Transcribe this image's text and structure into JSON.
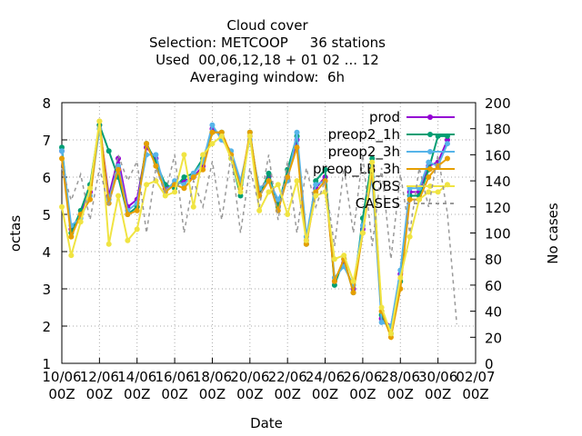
{
  "chart_data": {
    "type": "line",
    "title": "Cloud cover",
    "subtitle": [
      "Selection: METCOOP     36 stations",
      "Used  00,06,12,18 + 01 02 ... 12",
      "Averaging window:  6h"
    ],
    "x_label": "Date",
    "y_label": "octas",
    "y2_label": "No cases",
    "x": [
      "10/06 00Z",
      "10/06 12Z",
      "11/06 00Z",
      "11/06 12Z",
      "12/06 00Z",
      "12/06 12Z",
      "13/06 00Z",
      "13/06 12Z",
      "14/06 00Z",
      "14/06 12Z",
      "15/06 00Z",
      "15/06 12Z",
      "16/06 00Z",
      "16/06 12Z",
      "17/06 00Z",
      "17/06 12Z",
      "18/06 00Z",
      "18/06 12Z",
      "19/06 00Z",
      "19/06 12Z",
      "20/06 00Z",
      "20/06 12Z",
      "21/06 00Z",
      "21/06 12Z",
      "22/06 00Z",
      "22/06 12Z",
      "23/06 00Z",
      "23/06 12Z",
      "24/06 00Z",
      "24/06 12Z",
      "25/06 00Z",
      "25/06 12Z",
      "26/06 00Z",
      "26/06 12Z",
      "27/06 00Z",
      "27/06 12Z",
      "28/06 00Z",
      "28/06 12Z",
      "29/06 00Z",
      "29/06 12Z",
      "30/06 00Z",
      "30/06 12Z",
      "01/07 00Z"
    ],
    "xlim": [
      "10/06 00Z",
      "02/07 00Z"
    ],
    "xticks": [
      "10/06 00Z",
      "12/06 00Z",
      "14/06 00Z",
      "16/06 00Z",
      "18/06 00Z",
      "20/06 00Z",
      "22/06 00Z",
      "24/06 00Z",
      "26/06 00Z",
      "28/06 00Z",
      "30/06 00Z",
      "02/07 00Z"
    ],
    "ylim": [
      1,
      8
    ],
    "yticks": [
      1,
      2,
      3,
      4,
      5,
      6,
      7,
      8
    ],
    "y2lim": [
      0,
      200
    ],
    "y2ticks": [
      0,
      20,
      40,
      60,
      80,
      100,
      120,
      140,
      160,
      180,
      200
    ],
    "grid": true,
    "legend": "top-right",
    "series": [
      {
        "name": "prod",
        "color": "#9400d3",
        "values": [
          6.7,
          4.6,
          5.0,
          5.6,
          7.4,
          5.5,
          6.5,
          5.2,
          5.4,
          6.8,
          6.5,
          5.7,
          5.8,
          5.9,
          6.0,
          6.3,
          7.3,
          7.1,
          6.6,
          5.8,
          7.1,
          5.6,
          6.0,
          5.3,
          6.0,
          7.0,
          4.3,
          5.7,
          6.0,
          3.2,
          3.7,
          3.0,
          4.6,
          6.2,
          2.2,
          2.0,
          3.4,
          5.6,
          5.6,
          6.3,
          6.4,
          7.0,
          null
        ]
      },
      {
        "name": "preop2_1h",
        "color": "#009e73",
        "values": [
          6.8,
          4.5,
          5.1,
          5.8,
          7.4,
          6.7,
          6.0,
          5.0,
          5.2,
          6.9,
          6.4,
          5.8,
          5.7,
          6.0,
          6.1,
          6.5,
          7.2,
          7.2,
          6.5,
          5.5,
          7.2,
          5.5,
          6.1,
          5.2,
          6.2,
          7.1,
          4.2,
          5.9,
          6.2,
          3.1,
          3.8,
          2.9,
          4.9,
          6.5,
          2.3,
          1.8,
          3.2,
          5.5,
          5.5,
          6.2,
          7.1,
          7.1,
          null
        ]
      },
      {
        "name": "preop2_3h",
        "color": "#56b4e9",
        "values": [
          6.7,
          4.7,
          4.9,
          5.5,
          7.3,
          5.4,
          6.3,
          5.1,
          5.3,
          6.6,
          6.6,
          5.6,
          5.9,
          5.8,
          6.1,
          6.4,
          7.4,
          7.0,
          6.7,
          5.9,
          7.0,
          5.7,
          5.9,
          5.4,
          5.9,
          7.2,
          4.4,
          5.8,
          5.9,
          3.3,
          3.6,
          3.1,
          4.7,
          6.0,
          2.1,
          2.0,
          3.5,
          5.7,
          5.7,
          6.4,
          6.3,
          6.9,
          null
        ]
      },
      {
        "name": "preop_LB_3h",
        "color": "#e69f00",
        "values": [
          6.5,
          4.4,
          5.0,
          5.4,
          7.5,
          5.3,
          6.2,
          5.0,
          5.1,
          6.9,
          6.3,
          5.6,
          5.8,
          5.7,
          6.0,
          6.2,
          7.2,
          7.2,
          6.6,
          5.7,
          7.2,
          5.5,
          5.9,
          5.1,
          6.0,
          6.8,
          4.2,
          5.6,
          5.9,
          3.2,
          3.8,
          2.9,
          4.5,
          6.2,
          2.4,
          1.7,
          3.0,
          5.4,
          5.4,
          6.0,
          6.3,
          6.5,
          null
        ]
      },
      {
        "name": "OBS",
        "color": "#f0e442",
        "values": [
          5.2,
          3.9,
          4.8,
          5.7,
          7.5,
          4.2,
          5.5,
          4.3,
          4.6,
          5.8,
          5.9,
          5.5,
          5.6,
          6.6,
          5.2,
          6.6,
          6.9,
          7.1,
          6.5,
          5.6,
          7.1,
          5.1,
          5.6,
          5.8,
          5.0,
          5.9,
          4.3,
          5.5,
          5.6,
          3.8,
          3.9,
          3.2,
          4.5,
          6.4,
          2.5,
          1.8,
          3.3,
          4.4,
          5.4,
          5.6,
          5.6,
          5.8,
          null
        ]
      },
      {
        "name": "CASES",
        "color": "#999999",
        "axis": "y2",
        "values": [
          150,
          125,
          145,
          110,
          150,
          120,
          160,
          140,
          155,
          100,
          150,
          130,
          160,
          100,
          140,
          120,
          155,
          110,
          160,
          100,
          150,
          120,
          160,
          110,
          155,
          100,
          150,
          120,
          140,
          90,
          150,
          100,
          160,
          90,
          150,
          80,
          145,
          100,
          150,
          120,
          160,
          115,
          30
        ]
      }
    ]
  }
}
